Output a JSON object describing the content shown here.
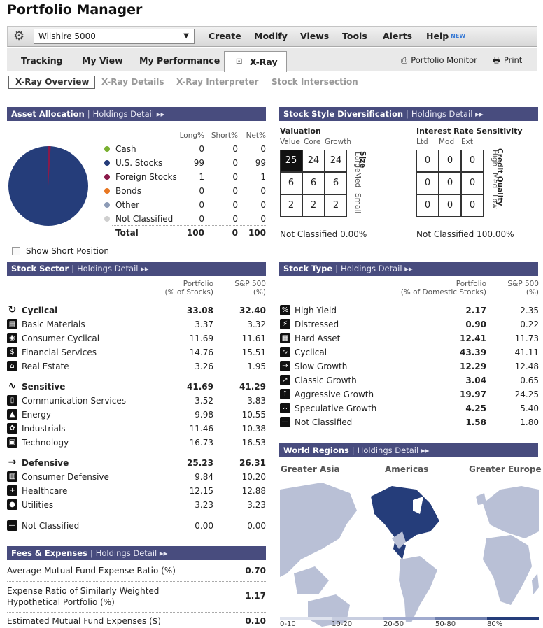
{
  "app_title": "Portfolio Manager",
  "portfolio_select": "Wilshire 5000",
  "menu": [
    "Create",
    "Modify",
    "Views",
    "Tools",
    "Alerts",
    "Help"
  ],
  "menu_new_tag": "NEW",
  "tabs": [
    "Tracking",
    "My View",
    "My Performance",
    "X-Ray"
  ],
  "right_tools": [
    "Portfolio Monitor",
    "Print"
  ],
  "subtabs": [
    "X-Ray Overview",
    "X-Ray Details",
    "X-Ray Interpreter",
    "Stock Intersection"
  ],
  "asset_allocation": {
    "title": "Asset Allocation",
    "link": "Holdings Detail ▸▸",
    "cols": [
      "Long%",
      "Short%",
      "Net%"
    ],
    "rows": [
      {
        "label": "Cash",
        "long": "0",
        "short": "0",
        "net": "0",
        "color": "#7ab031"
      },
      {
        "label": "U.S. Stocks",
        "long": "99",
        "short": "0",
        "net": "99",
        "color": "#253d7a"
      },
      {
        "label": "Foreign Stocks",
        "long": "1",
        "short": "0",
        "net": "1",
        "color": "#8b1a4a"
      },
      {
        "label": "Bonds",
        "long": "0",
        "short": "0",
        "net": "0",
        "color": "#e87722"
      },
      {
        "label": "Other",
        "long": "0",
        "short": "0",
        "net": "0",
        "color": "#8d9bb6"
      },
      {
        "label": "Not Classified",
        "long": "0",
        "short": "0",
        "net": "0",
        "color": "#cfcfcf"
      }
    ],
    "total": {
      "label": "Total",
      "long": "100",
      "short": "0",
      "net": "100"
    },
    "pie": [
      99,
      1
    ],
    "show_short": "Show Short Position"
  },
  "style": {
    "title": "Stock Style Diversification",
    "link": "Holdings Detail ▸▸",
    "valuation": {
      "label": "Valuation",
      "cols": [
        "Value",
        "Core",
        "Growth"
      ],
      "side": [
        "Large",
        "Med",
        "Small"
      ],
      "side_title": "Size",
      "grid": [
        [
          "25",
          "24",
          "24"
        ],
        [
          "6",
          "6",
          "6"
        ],
        [
          "2",
          "2",
          "2"
        ]
      ],
      "nc": "Not Classified 0.00%"
    },
    "interest": {
      "label": "Interest Rate Sensitivity",
      "cols": [
        "Ltd",
        "Mod",
        "Ext"
      ],
      "side": [
        "High",
        "Med",
        "Low"
      ],
      "side_title": "Credit Quality",
      "grid": [
        [
          "0",
          "0",
          "0"
        ],
        [
          "0",
          "0",
          "0"
        ],
        [
          "0",
          "0",
          "0"
        ]
      ],
      "nc": "Not Classified 100.00%"
    }
  },
  "sector": {
    "title": "Stock Sector",
    "link": "Holdings Detail ▸▸",
    "col1": [
      "Portfolio",
      "(% of Stocks)"
    ],
    "col2": [
      "S&P 500",
      "(%)"
    ],
    "rows": [
      {
        "label": "Cyclical",
        "p": "33.08",
        "s": "32.40",
        "bold": true,
        "icon": "cyclical-icon",
        "g": "↻"
      },
      {
        "label": "Basic Materials",
        "p": "3.37",
        "s": "3.32",
        "icon": "basic-materials-icon",
        "g": "▤"
      },
      {
        "label": "Consumer Cyclical",
        "p": "11.69",
        "s": "11.61",
        "icon": "consumer-cyclical-icon",
        "g": "◉"
      },
      {
        "label": "Financial Services",
        "p": "14.76",
        "s": "15.51",
        "icon": "financial-services-icon",
        "g": "$"
      },
      {
        "label": "Real Estate",
        "p": "3.26",
        "s": "1.95",
        "icon": "real-estate-icon",
        "g": "⌂"
      },
      {
        "label": "Sensitive",
        "p": "41.69",
        "s": "41.29",
        "bold": true,
        "icon": "sensitive-icon",
        "g": "∿"
      },
      {
        "label": "Communication Services",
        "p": "3.52",
        "s": "3.83",
        "icon": "communication-icon",
        "g": "▯"
      },
      {
        "label": "Energy",
        "p": "9.98",
        "s": "10.55",
        "icon": "energy-icon",
        "g": "▲"
      },
      {
        "label": "Industrials",
        "p": "11.46",
        "s": "10.38",
        "icon": "industrials-icon",
        "g": "✿"
      },
      {
        "label": "Technology",
        "p": "16.73",
        "s": "16.53",
        "icon": "technology-icon",
        "g": "▣"
      },
      {
        "label": "Defensive",
        "p": "25.23",
        "s": "26.31",
        "bold": true,
        "icon": "defensive-icon",
        "g": "→"
      },
      {
        "label": "Consumer Defensive",
        "p": "9.84",
        "s": "10.20",
        "icon": "consumer-defensive-icon",
        "g": "▥"
      },
      {
        "label": "Healthcare",
        "p": "12.15",
        "s": "12.88",
        "icon": "healthcare-icon",
        "g": "+"
      },
      {
        "label": "Utilities",
        "p": "3.23",
        "s": "3.23",
        "icon": "utilities-icon",
        "g": "●"
      },
      {
        "label": "Not Classified",
        "p": "0.00",
        "s": "0.00",
        "icon": "not-classified-icon",
        "g": "—"
      }
    ]
  },
  "stock_type": {
    "title": "Stock Type",
    "link": "Holdings Detail ▸▸",
    "col1": [
      "Portfolio",
      "(% of Domestic Stocks)"
    ],
    "col2": [
      "S&P 500",
      "(%)"
    ],
    "rows": [
      {
        "label": "High Yield",
        "p": "2.17",
        "s": "2.35",
        "icon": "high-yield-icon",
        "g": "%"
      },
      {
        "label": "Distressed",
        "p": "0.90",
        "s": "0.22",
        "icon": "distressed-icon",
        "g": "⚡"
      },
      {
        "label": "Hard Asset",
        "p": "12.41",
        "s": "11.73",
        "icon": "hard-asset-icon",
        "g": "▦"
      },
      {
        "label": "Cyclical",
        "p": "43.39",
        "s": "41.11",
        "icon": "cyclical-type-icon",
        "g": "∿"
      },
      {
        "label": "Slow Growth",
        "p": "12.29",
        "s": "12.48",
        "icon": "slow-growth-icon",
        "g": "→"
      },
      {
        "label": "Classic Growth",
        "p": "3.04",
        "s": "0.65",
        "icon": "classic-growth-icon",
        "g": "↗"
      },
      {
        "label": "Aggressive Growth",
        "p": "19.97",
        "s": "24.25",
        "icon": "aggressive-growth-icon",
        "g": "↑"
      },
      {
        "label": "Speculative Growth",
        "p": "4.25",
        "s": "5.40",
        "icon": "speculative-growth-icon",
        "g": "⁙"
      },
      {
        "label": "Not Classified",
        "p": "1.58",
        "s": "1.80",
        "icon": "not-classified-type-icon",
        "g": "—"
      }
    ]
  },
  "fees": {
    "title": "Fees & Expenses",
    "link": "Holdings Detail ▸▸",
    "rows": [
      {
        "label": "Average Mutual Fund Expense Ratio (%)",
        "value": "0.70"
      },
      {
        "label": "Expense Ratio of Similarly Weighted Hypothetical Portfolio (%)",
        "value": "1.17"
      },
      {
        "label": "Estimated Mutual Fund Expenses ($)",
        "value": "0.10"
      }
    ]
  },
  "regions": {
    "title": "World Regions",
    "link": "Holdings Detail ▸▸",
    "labels": [
      "Greater Asia",
      "Americas",
      "Greater Europe"
    ],
    "scale": [
      "0-10",
      "10-20",
      "20-50",
      "50-80",
      "80%"
    ]
  },
  "colors": {
    "header": "#484c7e",
    "map_dark": "#253d7a",
    "map_light": "#b9c0d6"
  }
}
